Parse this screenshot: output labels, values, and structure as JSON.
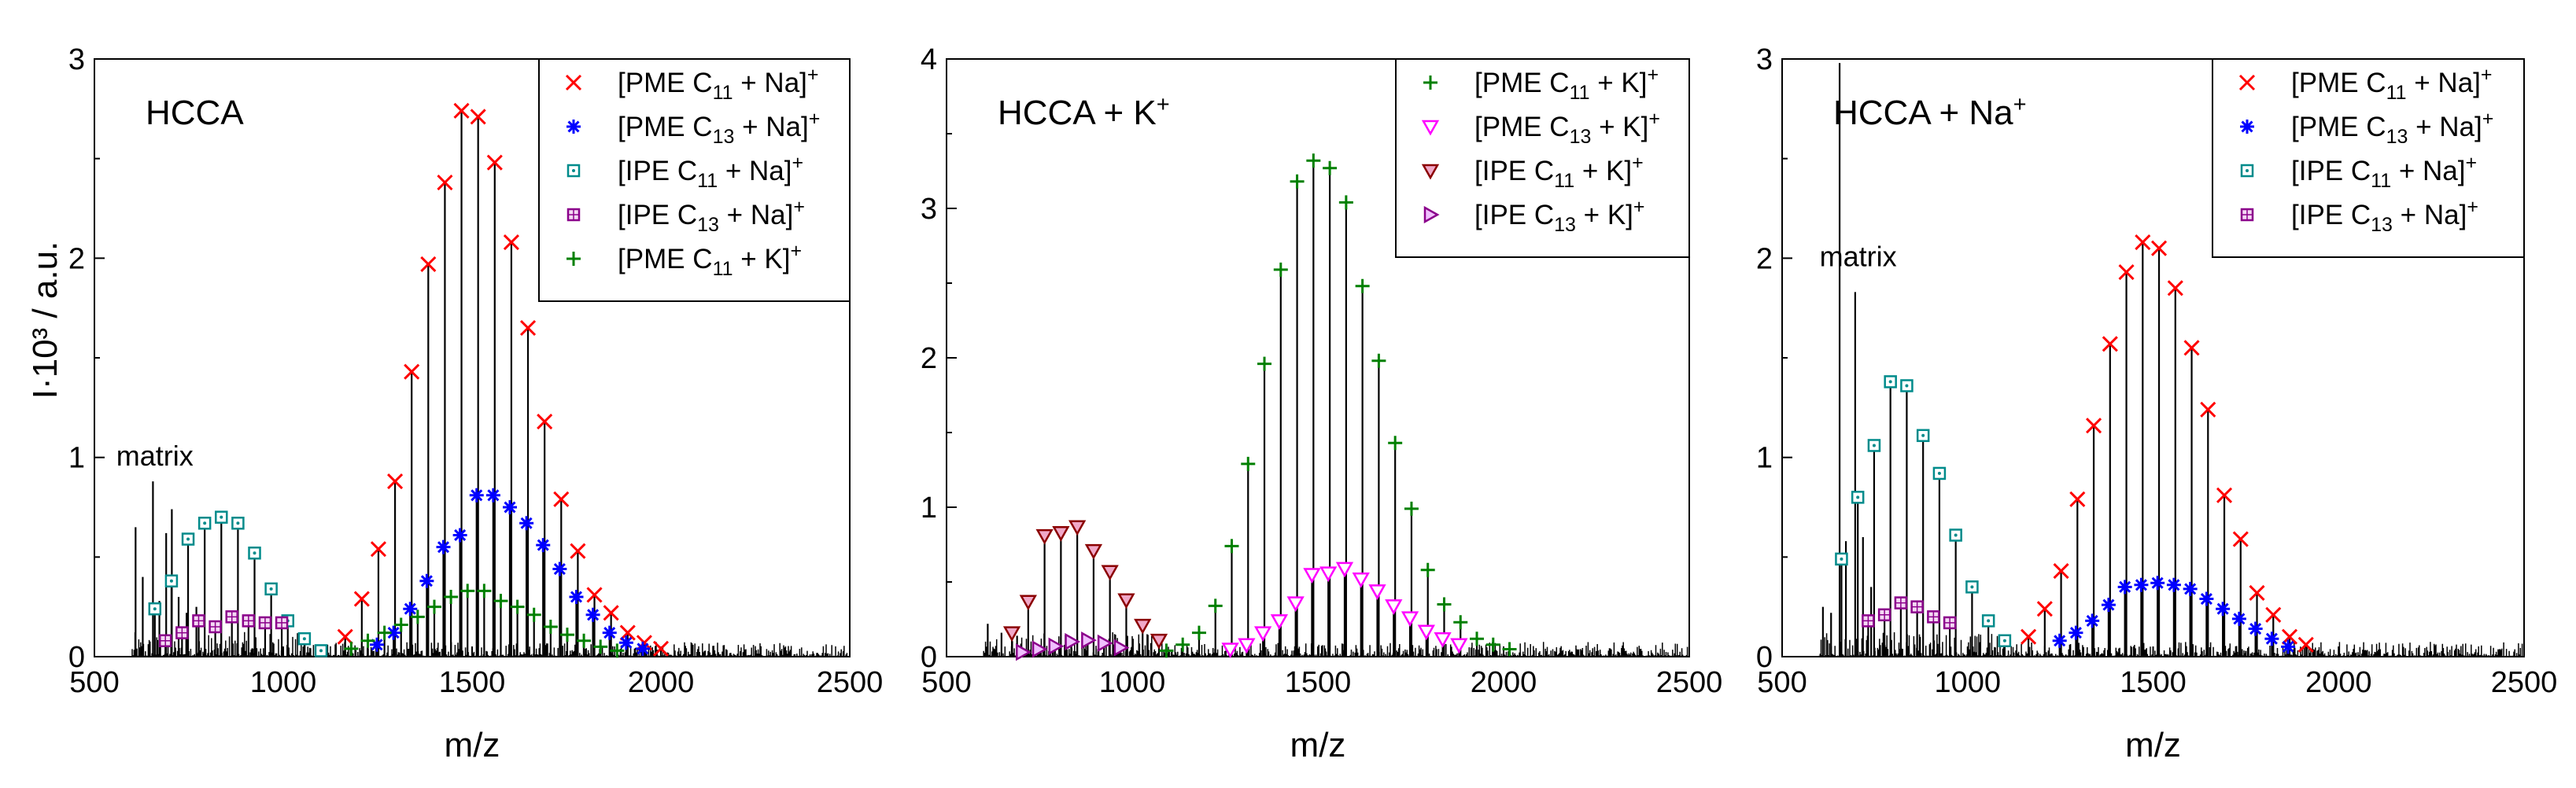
{
  "figure": {
    "ylabel": "I·10³ / a.u.",
    "xlabel": "m/z"
  },
  "styles": {
    "pmeC11Na": {
      "marker": "x",
      "color": "#ff0000"
    },
    "pmeC13Na": {
      "marker": "asterisk",
      "color": "#0000ff"
    },
    "ipeC11Na": {
      "marker": "square-dot",
      "color": "#008b8b"
    },
    "ipeC13Na": {
      "marker": "square-cross",
      "color": "#8b008b"
    },
    "pmeC11K": {
      "marker": "plus",
      "color": "#008000"
    },
    "pmeC13K": {
      "marker": "triangle-down",
      "color": "#ff00ff"
    },
    "ipeC11K": {
      "marker": "triangle-down-filled",
      "color": "#8b0000",
      "fill": "#f0a8c8"
    },
    "ipeC13K": {
      "marker": "triangle-right",
      "color": "#8b008b",
      "fill": "#f0c0ff"
    }
  },
  "chart_data": [
    {
      "type": "line",
      "title": "HCCA",
      "label_parts": [
        "HCCA"
      ],
      "xlabel": "m/z",
      "ylabel": "I·10³ / a.u.",
      "xlim": [
        500,
        2500
      ],
      "ylim": [
        0,
        3
      ],
      "xticks": [
        "500",
        "1000",
        "1500",
        "2000",
        "2500"
      ],
      "yticks": [
        "0",
        "1",
        "2",
        "3"
      ],
      "annotation": {
        "text": "matrix",
        "x": 660,
        "y": 0.96
      },
      "legend": [
        {
          "label": "[PME C11 + Na]+",
          "parts": [
            "[PME C",
            "11",
            " + Na]",
            "+"
          ],
          "style": "pmeC11Na"
        },
        {
          "label": "[PME C13 + Na]+",
          "parts": [
            "[PME C",
            "13",
            " + Na]",
            "+"
          ],
          "style": "pmeC13Na"
        },
        {
          "label": "[IPE C11 + Na]+",
          "parts": [
            "[IPE C",
            "11",
            " + Na]",
            "+"
          ],
          "style": "ipeC11Na"
        },
        {
          "label": "[IPE C13 + Na]+",
          "parts": [
            "[IPE C",
            "13",
            " + Na]",
            "+"
          ],
          "style": "ipeC13Na"
        },
        {
          "label": "[PME C11 + K]+",
          "parts": [
            "[PME C",
            "11",
            " + K]",
            "+"
          ],
          "style": "pmeC11K"
        }
      ],
      "matrix_peaks": [
        [
          609,
          0.65
        ],
        [
          628,
          0.4
        ],
        [
          655,
          0.88
        ],
        [
          672,
          0.28
        ],
        [
          690,
          0.62
        ],
        [
          705,
          0.74
        ],
        [
          723,
          0.3
        ],
        [
          744,
          0.22
        ],
        [
          770,
          0.25
        ]
      ],
      "series": [
        {
          "name": "[PME C11 + Na]+",
          "style": "pmeC11Na",
          "x": [
            1164,
            1208,
            1252,
            1296,
            1340,
            1384,
            1428,
            1472,
            1516,
            1560,
            1604,
            1648,
            1692,
            1736,
            1780,
            1824,
            1868,
            1912,
            1956,
            2000
          ],
          "y": [
            0.1,
            0.29,
            0.54,
            0.88,
            1.43,
            1.97,
            2.38,
            2.74,
            2.71,
            2.48,
            2.08,
            1.65,
            1.18,
            0.79,
            0.53,
            0.31,
            0.22,
            0.12,
            0.07,
            0.04
          ]
        },
        {
          "name": "[PME C13 + Na]+",
          "style": "pmeC13Na",
          "x": [
            1248,
            1292,
            1336,
            1380,
            1424,
            1468,
            1512,
            1556,
            1600,
            1644,
            1688,
            1732,
            1776,
            1820,
            1864,
            1908,
            1952
          ],
          "y": [
            0.06,
            0.12,
            0.24,
            0.38,
            0.55,
            0.61,
            0.81,
            0.81,
            0.75,
            0.67,
            0.56,
            0.44,
            0.3,
            0.21,
            0.12,
            0.07,
            0.04
          ]
        },
        {
          "name": "[IPE C11 + Na]+",
          "style": "ipeC11Na",
          "x": [
            660,
            704,
            748,
            792,
            836,
            880,
            924,
            968,
            1012,
            1056,
            1100
          ],
          "y": [
            0.24,
            0.38,
            0.59,
            0.67,
            0.7,
            0.67,
            0.52,
            0.34,
            0.18,
            0.09,
            0.03
          ]
        },
        {
          "name": "[IPE C13 + Na]+",
          "style": "ipeC13Na",
          "x": [
            688,
            732,
            776,
            820,
            864,
            908,
            952,
            996
          ],
          "y": [
            0.08,
            0.12,
            0.18,
            0.15,
            0.2,
            0.18,
            0.17,
            0.17
          ]
        },
        {
          "name": "[PME C11 + K]+",
          "style": "pmeC11K",
          "x": [
            1180,
            1224,
            1268,
            1312,
            1356,
            1400,
            1444,
            1488,
            1532,
            1576,
            1620,
            1664,
            1708,
            1752,
            1796,
            1840,
            1884
          ],
          "y": [
            0.04,
            0.08,
            0.12,
            0.16,
            0.2,
            0.25,
            0.3,
            0.33,
            0.33,
            0.28,
            0.25,
            0.21,
            0.15,
            0.11,
            0.08,
            0.05,
            0.03
          ]
        }
      ]
    },
    {
      "type": "line",
      "title": "HCCA + K+",
      "label_parts": [
        "HCCA + K",
        "+"
      ],
      "xlabel": "m/z",
      "xlim": [
        500,
        2500
      ],
      "ylim": [
        0,
        4
      ],
      "xticks": [
        "500",
        "1000",
        "1500",
        "2000",
        "2500"
      ],
      "yticks": [
        "0",
        "1",
        "2",
        "3",
        "4"
      ],
      "legend": [
        {
          "label": "[PME C11 + K]+",
          "parts": [
            "[PME C",
            "11",
            " + K]",
            "+"
          ],
          "style": "pmeC11K"
        },
        {
          "label": "[PME C13 + K]+",
          "parts": [
            "[PME C",
            "13",
            " + K]",
            "+"
          ],
          "style": "pmeC13K"
        },
        {
          "label": "[IPE C11 + K]+",
          "parts": [
            "[IPE C",
            "11",
            " + K]",
            "+"
          ],
          "style": "ipeC11K"
        },
        {
          "label": "[IPE C13 + K]+",
          "parts": [
            "[IPE C",
            "13",
            " + K]",
            "+"
          ],
          "style": "ipeC13K"
        }
      ],
      "matrix_peaks": [
        [
          611,
          0.22
        ],
        [
          648,
          0.16
        ],
        [
          690,
          0.14
        ]
      ],
      "series": [
        {
          "name": "[PME C11 + K]+",
          "style": "pmeC11K",
          "x": [
            1092,
            1136,
            1180,
            1224,
            1268,
            1312,
            1356,
            1400,
            1444,
            1488,
            1532,
            1576,
            1620,
            1664,
            1708,
            1752,
            1796,
            1840,
            1884,
            1928,
            1972,
            2016
          ],
          "y": [
            0.04,
            0.08,
            0.16,
            0.34,
            0.74,
            1.29,
            1.96,
            2.59,
            3.18,
            3.32,
            3.27,
            3.04,
            2.48,
            1.98,
            1.43,
            0.99,
            0.58,
            0.35,
            0.23,
            0.12,
            0.08,
            0.05
          ]
        },
        {
          "name": "[PME C13 + K]+",
          "style": "pmeC13K",
          "x": [
            1264,
            1308,
            1352,
            1396,
            1440,
            1484,
            1528,
            1572,
            1616,
            1660,
            1704,
            1748,
            1792,
            1836,
            1880
          ],
          "y": [
            0.05,
            0.08,
            0.16,
            0.24,
            0.36,
            0.55,
            0.56,
            0.59,
            0.52,
            0.44,
            0.34,
            0.26,
            0.17,
            0.12,
            0.08
          ]
        },
        {
          "name": "[IPE C11 + K]+",
          "style": "ipeC11K",
          "x": [
            676,
            720,
            764,
            808,
            852,
            896,
            940,
            984,
            1028,
            1072
          ],
          "y": [
            0.16,
            0.37,
            0.81,
            0.83,
            0.87,
            0.71,
            0.57,
            0.38,
            0.21,
            0.11
          ]
        },
        {
          "name": "[IPE C13 + K]+",
          "style": "ipeC13K",
          "x": [
            704,
            748,
            792,
            836,
            880,
            924,
            968
          ],
          "y": [
            0.03,
            0.05,
            0.07,
            0.1,
            0.11,
            0.09,
            0.06
          ]
        }
      ]
    },
    {
      "type": "line",
      "title": "HCCA + Na+",
      "label_parts": [
        "HCCA + Na",
        "+"
      ],
      "xlabel": "m/z",
      "xlim": [
        500,
        2500
      ],
      "ylim": [
        0,
        3
      ],
      "xticks": [
        "500",
        "1000",
        "1500",
        "2000",
        "2500"
      ],
      "yticks": [
        "0",
        "1",
        "2",
        "3"
      ],
      "annotation": {
        "text": "matrix",
        "x": 705,
        "y": 1.96
      },
      "legend": [
        {
          "label": "[PME C11 + Na]+",
          "parts": [
            "[PME C",
            "11",
            " + Na]",
            "+"
          ],
          "style": "pmeC11Na"
        },
        {
          "label": "[PME C13 + Na]+",
          "parts": [
            "[PME C",
            "13",
            " + Na]",
            "+"
          ],
          "style": "pmeC13Na"
        },
        {
          "label": "[IPE C11 + Na]+",
          "parts": [
            "[IPE C",
            "11",
            " + Na]",
            "+"
          ],
          "style": "ipeC11Na"
        },
        {
          "label": "[IPE C13 + Na]+",
          "parts": [
            "[IPE C",
            "13",
            " + Na]",
            "+"
          ],
          "style": "ipeC13Na"
        }
      ],
      "matrix_peaks": [
        [
          610,
          0.25
        ],
        [
          632,
          0.22
        ],
        [
          655,
          2.98
        ],
        [
          672,
          0.58
        ],
        [
          697,
          1.83
        ],
        [
          718,
          0.6
        ],
        [
          740,
          0.35
        ]
      ],
      "series": [
        {
          "name": "[PME C11 + Na]+",
          "style": "pmeC11Na",
          "x": [
            1164,
            1208,
            1252,
            1296,
            1340,
            1384,
            1428,
            1472,
            1516,
            1560,
            1604,
            1648,
            1692,
            1736,
            1780,
            1824,
            1868,
            1912
          ],
          "y": [
            0.1,
            0.24,
            0.43,
            0.79,
            1.16,
            1.57,
            1.93,
            2.08,
            2.05,
            1.85,
            1.55,
            1.24,
            0.81,
            0.59,
            0.32,
            0.21,
            0.1,
            0.06
          ]
        },
        {
          "name": "[PME C13 + Na]+",
          "style": "pmeC13Na",
          "x": [
            1248,
            1292,
            1336,
            1380,
            1424,
            1468,
            1512,
            1556,
            1600,
            1644,
            1688,
            1732,
            1776,
            1820,
            1864
          ],
          "y": [
            0.08,
            0.12,
            0.18,
            0.26,
            0.35,
            0.36,
            0.37,
            0.36,
            0.34,
            0.29,
            0.24,
            0.19,
            0.14,
            0.09,
            0.05
          ]
        },
        {
          "name": "[IPE C11 + Na]+",
          "style": "ipeC11Na",
          "x": [
            660,
            704,
            748,
            792,
            836,
            880,
            924,
            968,
            1012,
            1056,
            1100
          ],
          "y": [
            0.49,
            0.8,
            1.06,
            1.38,
            1.36,
            1.11,
            0.92,
            0.61,
            0.35,
            0.18,
            0.08
          ]
        },
        {
          "name": "[IPE C13 + Na]+",
          "style": "ipeC13Na",
          "x": [
            732,
            776,
            820,
            864,
            908,
            952
          ],
          "y": [
            0.18,
            0.21,
            0.27,
            0.25,
            0.2,
            0.17
          ]
        }
      ]
    }
  ]
}
